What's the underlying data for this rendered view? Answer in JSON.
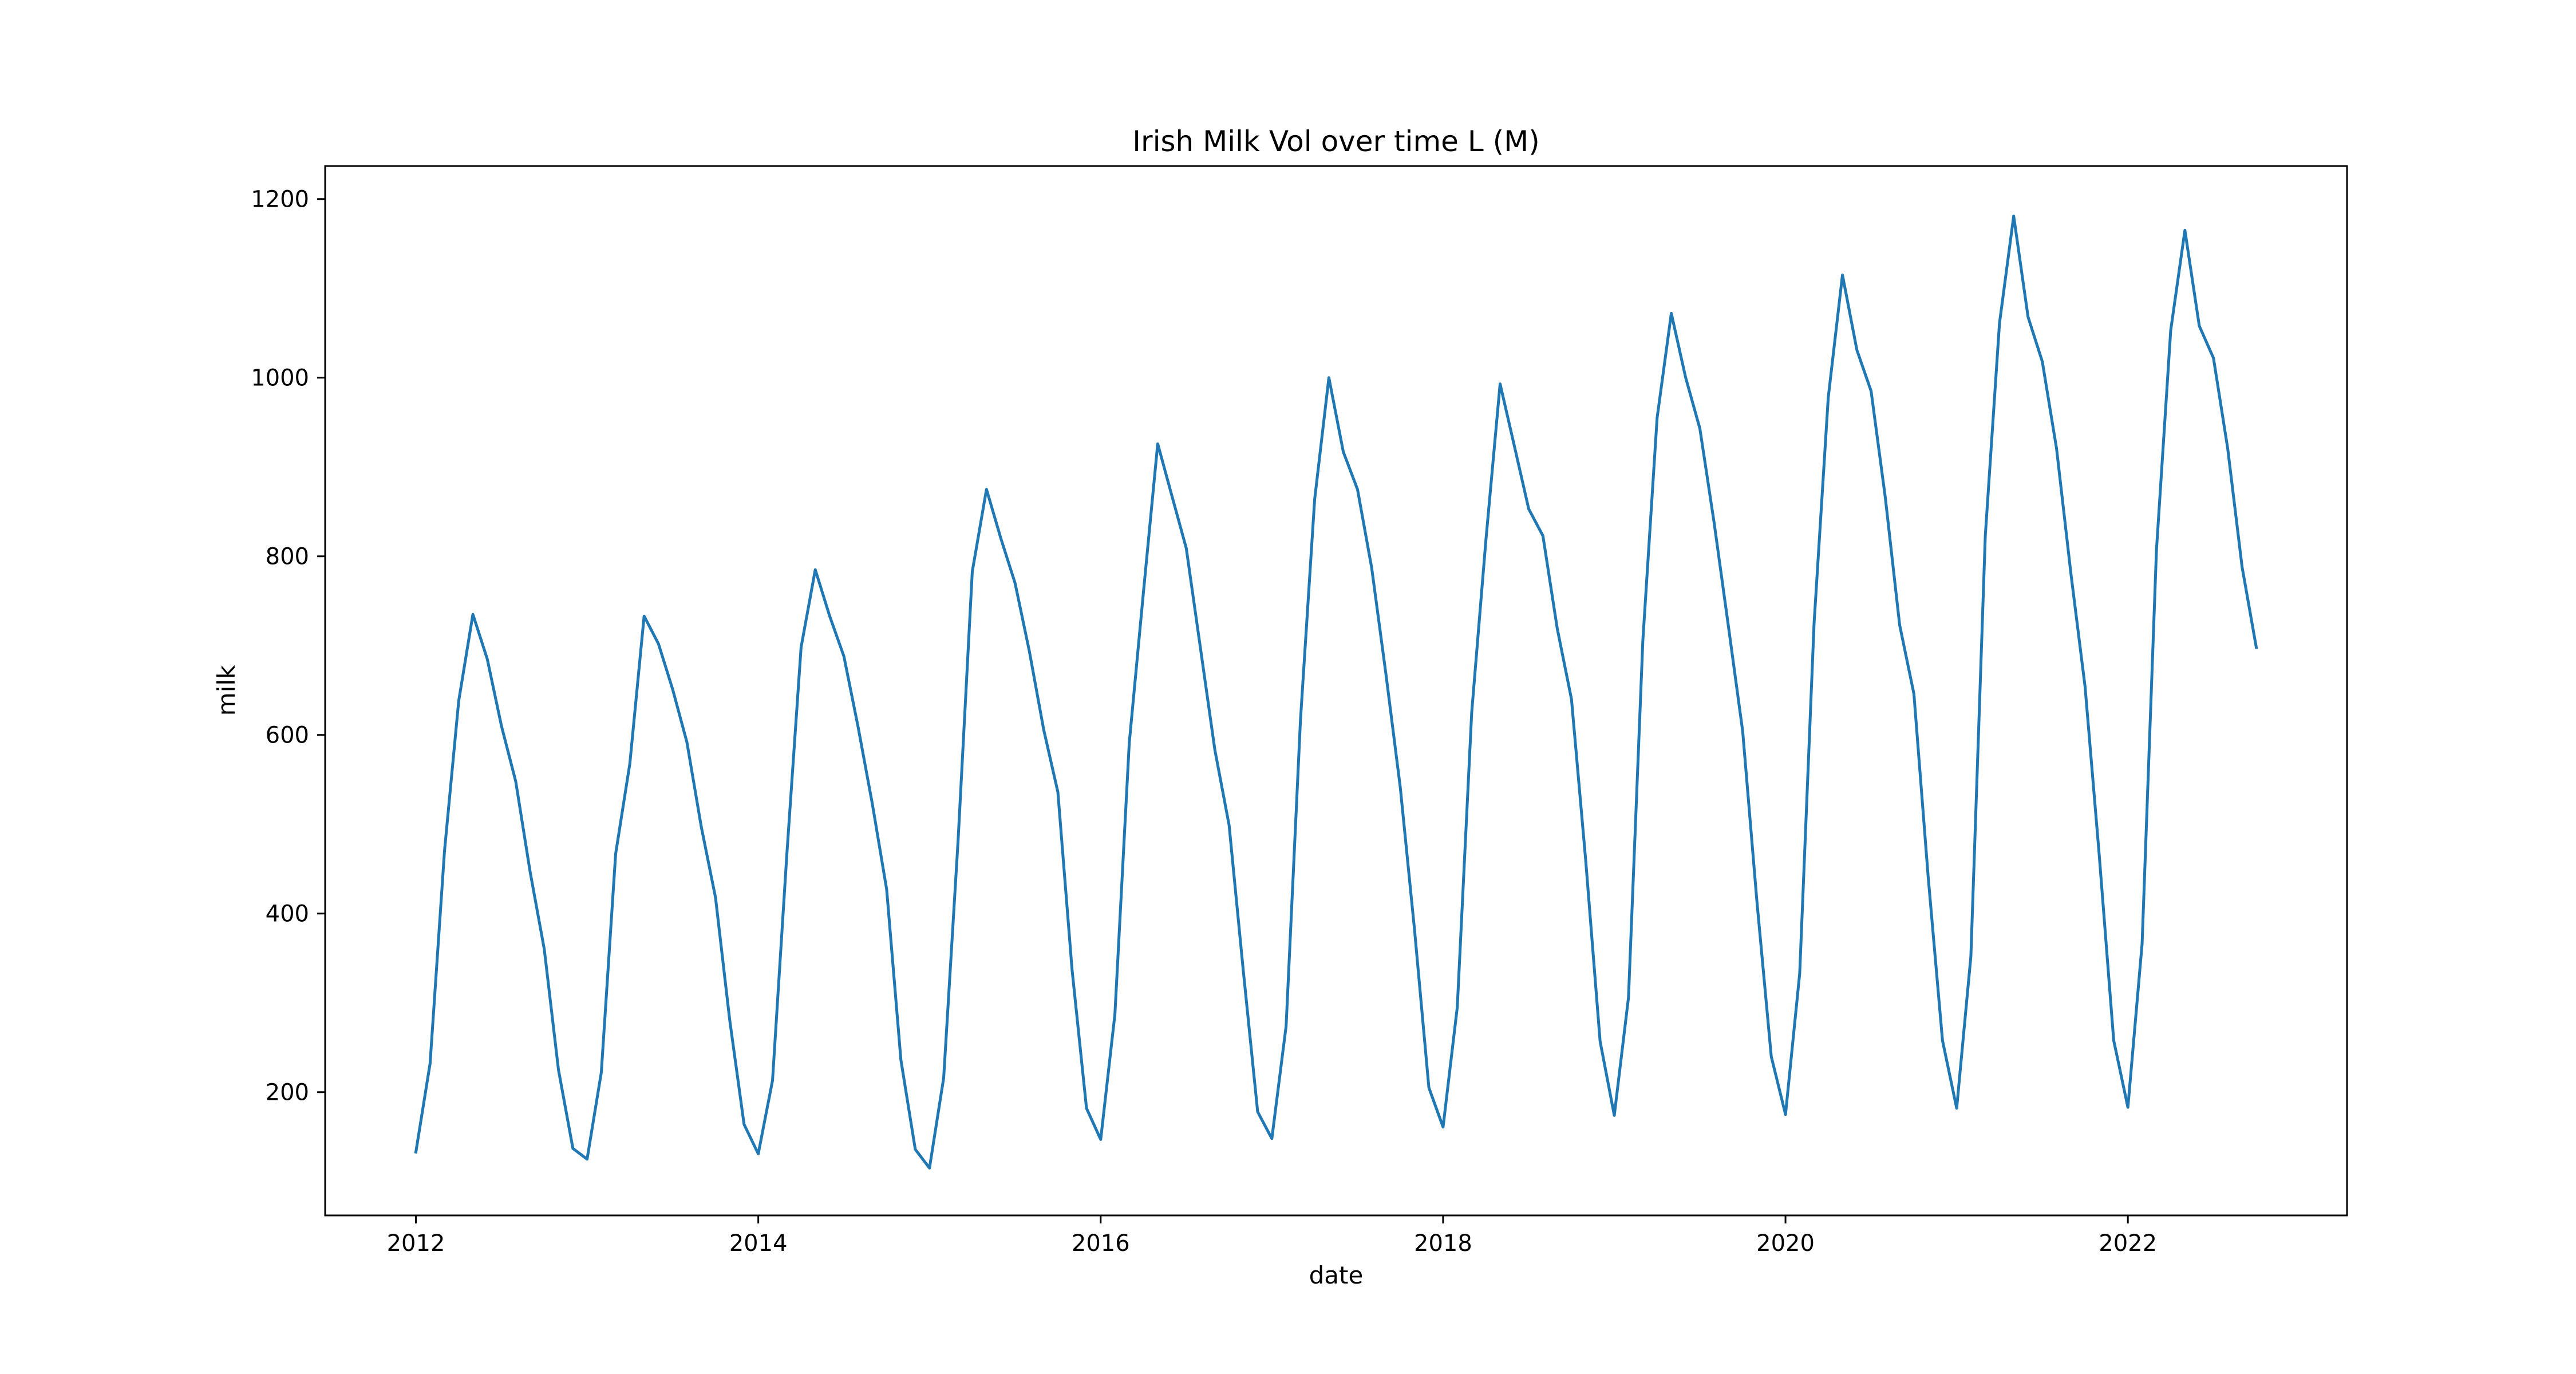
{
  "chart_data": {
    "type": "line",
    "title": "Irish Milk Vol over time L (M)",
    "xlabel": "date",
    "ylabel": "milk",
    "xlim": [
      2011.47,
      2023.28
    ],
    "ylim": [
      62,
      1237
    ],
    "x_ticks": [
      2012,
      2014,
      2016,
      2018,
      2020,
      2022
    ],
    "x_tick_labels": [
      "2012",
      "2014",
      "2016",
      "2018",
      "2020",
      "2022"
    ],
    "y_ticks": [
      200,
      400,
      600,
      800,
      1000,
      1200
    ],
    "y_tick_labels": [
      "200",
      "400",
      "600",
      "800",
      "1000",
      "1200"
    ],
    "grid": false,
    "legend": "none",
    "line_color": "#1f77b4",
    "series": [
      {
        "x": [
          2012.0,
          2012.083,
          2012.167,
          2012.25,
          2012.333,
          2012.417,
          2012.5,
          2012.583,
          2012.667,
          2012.75,
          2012.833,
          2012.917,
          2013.0,
          2013.083,
          2013.167,
          2013.25,
          2013.333,
          2013.417,
          2013.5,
          2013.583,
          2013.667,
          2013.75,
          2013.833,
          2013.917,
          2014.0,
          2014.083,
          2014.167,
          2014.25,
          2014.333,
          2014.417,
          2014.5,
          2014.583,
          2014.667,
          2014.75,
          2014.833,
          2014.917,
          2015.0,
          2015.083,
          2015.167,
          2015.25,
          2015.333,
          2015.417,
          2015.5,
          2015.583,
          2015.667,
          2015.75,
          2015.833,
          2015.917,
          2016.0,
          2016.083,
          2016.167,
          2016.25,
          2016.333,
          2016.417,
          2016.5,
          2016.583,
          2016.667,
          2016.75,
          2016.833,
          2016.917,
          2017.0,
          2017.083,
          2017.167,
          2017.25,
          2017.333,
          2017.417,
          2017.5,
          2017.583,
          2017.667,
          2017.75,
          2017.833,
          2017.917,
          2018.0,
          2018.083,
          2018.167,
          2018.25,
          2018.333,
          2018.417,
          2018.5,
          2018.583,
          2018.667,
          2018.75,
          2018.833,
          2018.917,
          2019.0,
          2019.083,
          2019.167,
          2019.25,
          2019.333,
          2019.417,
          2019.5,
          2019.583,
          2019.667,
          2019.75,
          2019.833,
          2019.917,
          2020.0,
          2020.083,
          2020.167,
          2020.25,
          2020.333,
          2020.417,
          2020.5,
          2020.583,
          2020.667,
          2020.75,
          2020.833,
          2020.917,
          2021.0,
          2021.083,
          2021.167,
          2021.25,
          2021.333,
          2021.417,
          2021.5,
          2021.583,
          2021.667,
          2021.75,
          2021.833,
          2021.917,
          2022.0,
          2022.083,
          2022.167,
          2022.25,
          2022.333,
          2022.417,
          2022.5,
          2022.583,
          2022.667,
          2022.75
        ],
        "values": [
          133,
          232,
          470,
          638,
          735,
          685,
          610,
          548,
          447,
          360,
          225,
          137,
          125,
          222,
          467,
          568,
          733,
          702,
          651,
          592,
          497,
          418,
          281,
          164,
          131,
          213,
          467,
          698,
          785,
          733,
          688,
          609,
          522,
          427,
          236,
          136,
          115,
          216,
          482,
          783,
          875,
          820,
          770,
          694,
          606,
          536,
          337,
          182,
          147,
          287,
          591,
          760,
          926,
          867,
          809,
          697,
          583,
          499,
          336,
          178,
          148,
          274,
          617,
          864,
          1000,
          917,
          875,
          787,
          667,
          541,
          382,
          205,
          161,
          295,
          625,
          818,
          993,
          923,
          853,
          823,
          719,
          640,
          460,
          257,
          174,
          306,
          706,
          955,
          1072,
          1000,
          943,
          838,
          721,
          604,
          414,
          240,
          175,
          333,
          725,
          978,
          1115,
          1031,
          985,
          866,
          723,
          646,
          442,
          258,
          182,
          352,
          823,
          1061,
          1181,
          1068,
          1018,
          921,
          781,
          654,
          465,
          258,
          183,
          366,
          807,
          1053,
          1165,
          1058,
          1022,
          921,
          788,
          698
        ]
      }
    ]
  }
}
